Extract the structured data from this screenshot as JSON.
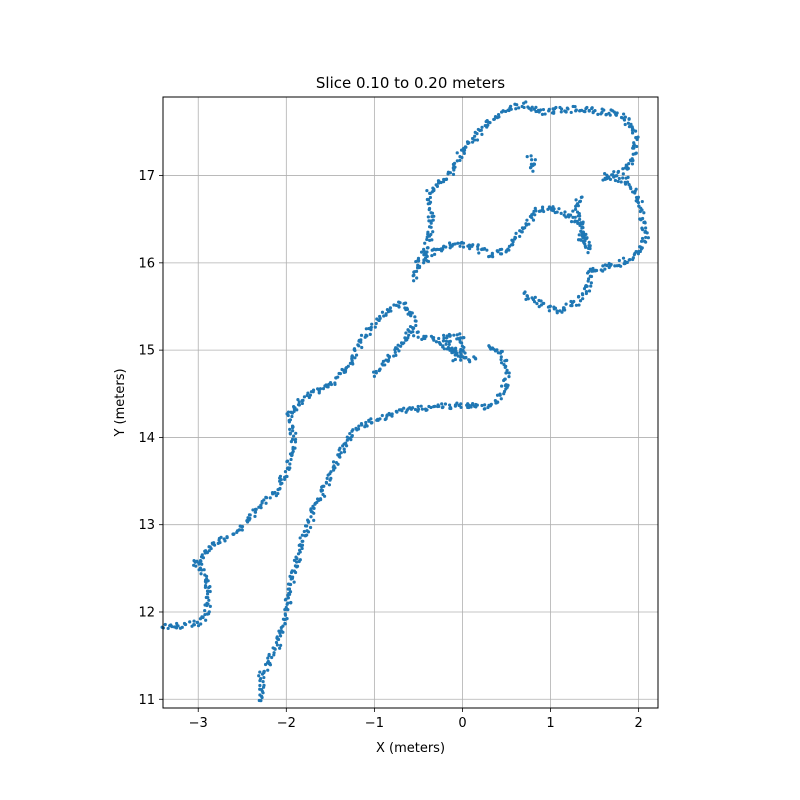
{
  "chart_data": {
    "type": "scatter",
    "title": "Slice 0.10 to 0.20 meters",
    "xlabel": "X (meters)",
    "ylabel": "Y (meters)",
    "xlim": [
      -3.4,
      2.22
    ],
    "ylim": [
      10.9,
      17.9
    ],
    "xticks": [
      -3,
      -2,
      -1,
      0,
      1,
      2
    ],
    "yticks": [
      11,
      12,
      13,
      14,
      15,
      16,
      17
    ],
    "grid": true,
    "marker_color": "#1f77b4",
    "series": [
      {
        "values": [
          [
            [
              -3.4,
              11.84
            ],
            [
              -3.2,
              11.84
            ],
            [
              -3.0,
              11.87
            ],
            [
              -2.9,
              11.98
            ],
            [
              -2.88,
              12.25
            ],
            [
              -2.97,
              12.55
            ],
            [
              -3.05,
              12.55
            ],
            [
              -2.98,
              12.62
            ],
            [
              -2.9,
              12.72
            ],
            [
              -2.7,
              12.85
            ],
            [
              -2.5,
              12.97
            ],
            [
              -2.35,
              13.17
            ],
            [
              -2.1,
              13.4
            ],
            [
              -2.0,
              13.6
            ],
            [
              -1.93,
              13.85
            ],
            [
              -1.92,
              14.05
            ],
            [
              -1.97,
              14.25
            ],
            [
              -1.85,
              14.4
            ],
            [
              -1.7,
              14.52
            ],
            [
              -1.5,
              14.6
            ],
            [
              -1.3,
              14.8
            ],
            [
              -1.2,
              15.0
            ],
            [
              -1.05,
              15.25
            ],
            [
              -0.9,
              15.4
            ],
            [
              -0.7,
              15.55
            ],
            [
              -0.6,
              15.45
            ],
            [
              -0.55,
              15.3
            ],
            [
              -0.65,
              15.1
            ],
            [
              -0.85,
              14.9
            ],
            [
              -1.0,
              14.7
            ]
          ],
          [
            [
              -2.3,
              10.98
            ],
            [
              -2.28,
              11.3
            ],
            [
              -2.1,
              11.6
            ],
            [
              -2.0,
              12.0
            ],
            [
              -1.93,
              12.4
            ],
            [
              -1.82,
              12.8
            ],
            [
              -1.68,
              13.2
            ],
            [
              -1.5,
              13.55
            ],
            [
              -1.35,
              13.9
            ],
            [
              -1.2,
              14.1
            ],
            [
              -1.0,
              14.2
            ],
            [
              -0.7,
              14.3
            ],
            [
              -0.3,
              14.35
            ],
            [
              0.0,
              14.37
            ],
            [
              0.2,
              14.35
            ],
            [
              0.4,
              14.4
            ],
            [
              0.5,
              14.6
            ],
            [
              0.5,
              14.8
            ],
            [
              0.42,
              15.0
            ],
            [
              0.3,
              15.05
            ]
          ],
          [
            [
              -0.55,
              15.2
            ],
            [
              -0.3,
              15.1
            ],
            [
              -0.1,
              15.0
            ],
            [
              0.0,
              14.95
            ],
            [
              0.0,
              15.15
            ],
            [
              -0.2,
              15.18
            ],
            [
              -0.1,
              14.9
            ],
            [
              0.15,
              14.9
            ]
          ],
          [
            [
              -0.55,
              15.8
            ],
            [
              -0.5,
              16.0
            ],
            [
              -0.38,
              16.25
            ],
            [
              -0.35,
              16.5
            ],
            [
              -0.4,
              16.75
            ],
            [
              -0.3,
              16.9
            ],
            [
              -0.15,
              17.0
            ],
            [
              -0.05,
              17.2
            ],
            [
              0.1,
              17.4
            ],
            [
              0.3,
              17.6
            ],
            [
              0.5,
              17.75
            ],
            [
              0.7,
              17.82
            ],
            [
              0.9,
              17.72
            ],
            [
              1.1,
              17.75
            ],
            [
              1.3,
              17.76
            ],
            [
              1.5,
              17.74
            ],
            [
              1.7,
              17.72
            ],
            [
              1.85,
              17.65
            ],
            [
              1.97,
              17.45
            ],
            [
              1.92,
              17.15
            ],
            [
              1.75,
              17.02
            ],
            [
              1.6,
              16.98
            ],
            [
              1.85,
              16.95
            ],
            [
              2.0,
              16.75
            ],
            [
              2.05,
              16.5
            ],
            [
              2.08,
              16.3
            ],
            [
              1.98,
              16.1
            ],
            [
              1.8,
              16.0
            ],
            [
              1.6,
              15.95
            ],
            [
              1.45,
              15.9
            ],
            [
              1.42,
              15.7
            ],
            [
              1.3,
              15.55
            ],
            [
              1.1,
              15.45
            ],
            [
              0.95,
              15.5
            ],
            [
              0.75,
              15.6
            ],
            [
              0.7,
              15.65
            ]
          ],
          [
            [
              -0.45,
              16.0
            ],
            [
              -0.3,
              16.15
            ],
            [
              -0.1,
              16.2
            ],
            [
              0.1,
              16.2
            ],
            [
              0.3,
              16.1
            ],
            [
              0.5,
              16.15
            ],
            [
              0.65,
              16.35
            ],
            [
              0.85,
              16.6
            ],
            [
              1.05,
              16.62
            ],
            [
              1.25,
              16.52
            ],
            [
              1.35,
              16.4
            ],
            [
              1.35,
              16.25
            ],
            [
              1.45,
              16.15
            ],
            [
              1.28,
              16.6
            ],
            [
              1.35,
              16.75
            ]
          ],
          [
            [
              0.75,
              17.2
            ],
            [
              0.8,
              17.15
            ],
            [
              0.8,
              17.05
            ]
          ]
        ]
      }
    ]
  }
}
